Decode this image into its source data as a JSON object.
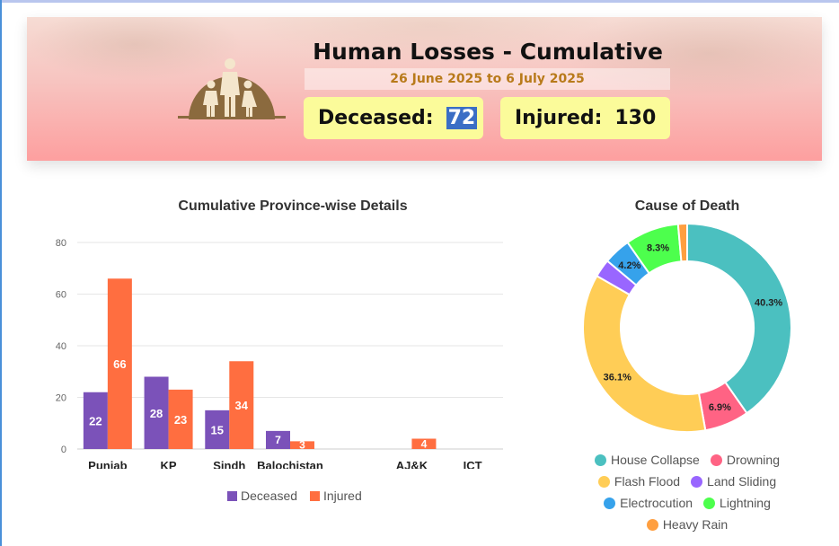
{
  "header": {
    "title": "Human Losses - Cumulative",
    "date_range": "26 June 2025 to 6 July 2025",
    "deceased_label": "Deceased:",
    "deceased_value": "72",
    "injured_label": "Injured:",
    "injured_value": "130",
    "colors": {
      "stat_bg": "#fbfb9a",
      "date_text": "#b87a1a",
      "logo": "#8b6a3e"
    }
  },
  "chart_data": [
    {
      "type": "bar",
      "title": "Cumulative Province-wise Details",
      "categories": [
        "Punjab",
        "KP",
        "Sindh",
        "Balochistan",
        "",
        "AJ&K",
        "ICT"
      ],
      "series": [
        {
          "name": "Deceased",
          "color": "#7b52b9",
          "values": [
            22,
            28,
            15,
            7,
            0,
            0,
            0
          ]
        },
        {
          "name": "Injured",
          "color": "#ff6e40",
          "values": [
            66,
            23,
            34,
            3,
            0,
            4,
            0
          ]
        }
      ],
      "yticks": [
        0,
        20,
        40,
        60,
        80
      ],
      "ylim": [
        0,
        80
      ],
      "legend_position": "bottom"
    },
    {
      "type": "pie",
      "title": "Cause of Death",
      "labels": [
        "House Collapse",
        "Drowning",
        "Flash Flood",
        "Land Sliding",
        "Electrocution",
        "Lightning",
        "Heavy Rain"
      ],
      "values": [
        40.3,
        6.9,
        36.1,
        2.8,
        4.2,
        8.3,
        1.4
      ],
      "display_labels": [
        "40.3%",
        "6.9%",
        "36.1%",
        "",
        "4.2%",
        "8.3%",
        ""
      ],
      "colors": [
        "#4bc0c0",
        "#ff6384",
        "#ffcd56",
        "#9966ff",
        "#36a2eb",
        "#4dff4d",
        "#ff9f40"
      ],
      "legend_position": "bottom"
    }
  ]
}
